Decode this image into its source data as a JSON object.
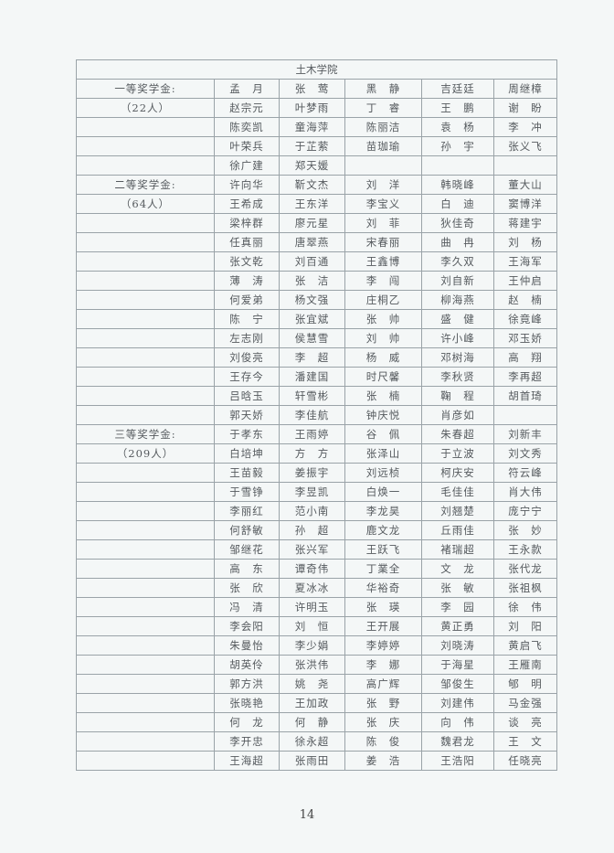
{
  "college": "土木学院",
  "page_number": "14",
  "rows": [
    {
      "label": "一等奖学金:",
      "names": [
        "孟　月",
        "张　莺",
        "黑　静",
        "吉廷廷",
        "周继樟"
      ]
    },
    {
      "label": "（22人）",
      "names": [
        "赵宗元",
        "叶梦雨",
        "丁　睿",
        "王　鹏",
        "谢　盼"
      ]
    },
    {
      "label": "",
      "names": [
        "陈奕凯",
        "童海萍",
        "陈丽洁",
        "袁　杨",
        "李　冲"
      ]
    },
    {
      "label": "",
      "names": [
        "叶荣兵",
        "于芷萦",
        "苗珈瑜",
        "孙　宇",
        "张义飞"
      ]
    },
    {
      "label": "",
      "names": [
        "徐广建",
        "郑天媛",
        "",
        "",
        ""
      ]
    },
    {
      "label": "二等奖学金:",
      "names": [
        "许向华",
        "靳文杰",
        "刘　洋",
        "韩晓峰",
        "董大山"
      ]
    },
    {
      "label": "（64人）",
      "names": [
        "王希成",
        "王东洋",
        "李宝义",
        "白　迪",
        "窦博洋"
      ]
    },
    {
      "label": "",
      "names": [
        "梁梓群",
        "廖元星",
        "刘　菲",
        "狄佳奇",
        "蒋建宇"
      ]
    },
    {
      "label": "",
      "names": [
        "任真丽",
        "唐翠燕",
        "宋春丽",
        "曲　冉",
        "刘　杨"
      ]
    },
    {
      "label": "",
      "names": [
        "张文乾",
        "刘百通",
        "王鑫博",
        "李久双",
        "王海军"
      ]
    },
    {
      "label": "",
      "names": [
        "薄　涛",
        "张　洁",
        "李　闯",
        "刘自新",
        "王仲启"
      ]
    },
    {
      "label": "",
      "names": [
        "何爱弟",
        "杨文强",
        "庄桐乙",
        "柳海燕",
        "赵　楠"
      ]
    },
    {
      "label": "",
      "names": [
        "陈　宁",
        "张宜斌",
        "张　帅",
        "盛　健",
        "徐竟峰"
      ]
    },
    {
      "label": "",
      "names": [
        "左志刚",
        "侯慧雪",
        "刘　帅",
        "许小峰",
        "邓玉娇"
      ]
    },
    {
      "label": "",
      "names": [
        "刘俊亮",
        "李　超",
        "杨　威",
        "邓树海",
        "高　翔"
      ]
    },
    {
      "label": "",
      "names": [
        "王存今",
        "潘建国",
        "时尺馨",
        "李秋贤",
        "李再超"
      ]
    },
    {
      "label": "",
      "names": [
        "吕晗玉",
        "轩雪彬",
        "张　楠",
        "鞠　程",
        "胡首琦"
      ]
    },
    {
      "label": "",
      "names": [
        "郭天娇",
        "李佳航",
        "钟庆悦",
        "肖彦如",
        ""
      ]
    },
    {
      "label": "三等奖学金:",
      "names": [
        "于孝东",
        "王雨婷",
        "谷　佩",
        "朱春超",
        "刘新丰"
      ]
    },
    {
      "label": "（209人）",
      "names": [
        "白培坤",
        "方　方",
        "张泽山",
        "于立波",
        "刘文秀"
      ]
    },
    {
      "label": "",
      "names": [
        "王苗毅",
        "姜振宇",
        "刘远桢",
        "柯庆安",
        "符云峰"
      ]
    },
    {
      "label": "",
      "names": [
        "于雪铮",
        "李昱凯",
        "白焕一",
        "毛佳佳",
        "肖大伟"
      ]
    },
    {
      "label": "",
      "names": [
        "李丽红",
        "范小南",
        "李龙昊",
        "刘翘楚",
        "庞宁宁"
      ]
    },
    {
      "label": "",
      "names": [
        "何舒敏",
        "孙　超",
        "鹿文龙",
        "丘雨佳",
        "张　妙"
      ]
    },
    {
      "label": "",
      "names": [
        "邹继花",
        "张兴军",
        "王跃飞",
        "褚瑞超",
        "王永款"
      ]
    },
    {
      "label": "",
      "names": [
        "高　东",
        "谭奇伟",
        "丁業全",
        "文　龙",
        "张代龙"
      ]
    },
    {
      "label": "",
      "names": [
        "张　欣",
        "夏冰冰",
        "华裕奇",
        "张　敏",
        "张祖枫"
      ]
    },
    {
      "label": "",
      "names": [
        "冯　清",
        "许明玉",
        "张　瑛",
        "李　园",
        "徐　伟"
      ]
    },
    {
      "label": "",
      "names": [
        "李会阳",
        "刘　恒",
        "王开展",
        "黄正勇",
        "刘　阳"
      ]
    },
    {
      "label": "",
      "names": [
        "朱曼怡",
        "李少娟",
        "李婷婷",
        "刘晓涛",
        "黄启飞"
      ]
    },
    {
      "label": "",
      "names": [
        "胡英伶",
        "张洪伟",
        "李　娜",
        "于海星",
        "王雁南"
      ]
    },
    {
      "label": "",
      "names": [
        "郭方洪",
        "姚　尧",
        "高广辉",
        "邹俊生",
        "郇　明"
      ]
    },
    {
      "label": "",
      "names": [
        "张晓艳",
        "王加政",
        "张　野",
        "刘建伟",
        "马金强"
      ]
    },
    {
      "label": "",
      "names": [
        "何　龙",
        "何　静",
        "张　庆",
        "向　伟",
        "谈　亮"
      ]
    },
    {
      "label": "",
      "names": [
        "李开忠",
        "徐永超",
        "陈　俊",
        "魏君龙",
        "王　文"
      ]
    },
    {
      "label": "",
      "names": [
        "王海超",
        "张雨田",
        "姜　浩",
        "王浩阳",
        "任晓亮"
      ]
    }
  ]
}
